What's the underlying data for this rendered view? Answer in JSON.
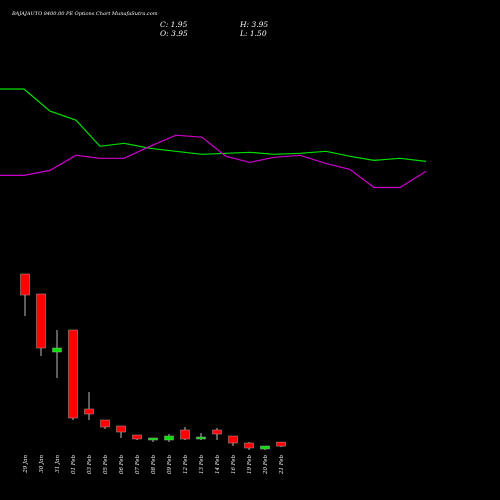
{
  "header": {
    "title": "BAJAJAUTO 8400.00 PE Options  Chart MunafaSutra.com",
    "close_label": "C:",
    "close_value": "1.95",
    "open_label": "O:",
    "open_value": "3.95",
    "high_label": "H:",
    "high_value": "3.95",
    "low_label": "L:",
    "low_value": "1.50"
  },
  "colors": {
    "background": "#000000",
    "up": "#00e000",
    "down": "#ff0000",
    "ma_fast": "#00dd00",
    "ma_slow": "#cc00cc"
  },
  "chart_data": {
    "type": "candlestick",
    "x": [
      "29 Jan",
      "30 Jan",
      "31 Jan",
      "01 Feb",
      "03 Feb",
      "05 Feb",
      "06 Feb",
      "07 Feb",
      "08 Feb",
      "09 Feb",
      "12 Feb",
      "13 Feb",
      "14 Feb",
      "16 Feb",
      "19 Feb",
      "20 Feb",
      "21 Feb"
    ],
    "candles": [
      {
        "open": 88.0,
        "high": 88.0,
        "low": 67.0,
        "close": 77.5
      },
      {
        "open": 78.0,
        "high": 78.0,
        "low": 47.0,
        "close": 51.0
      },
      {
        "open": 49.0,
        "high": 60.0,
        "low": 36.0,
        "close": 51.0
      },
      {
        "open": 60.0,
        "high": 60.0,
        "low": 15.0,
        "close": 16.0
      },
      {
        "open": 20.5,
        "high": 29.0,
        "low": 15.0,
        "close": 18.0
      },
      {
        "open": 15.0,
        "high": 15.0,
        "low": 10.5,
        "close": 11.5
      },
      {
        "open": 12.0,
        "high": 12.0,
        "low": 6.0,
        "close": 9.0
      },
      {
        "open": 7.5,
        "high": 7.5,
        "low": 5.0,
        "close": 5.5
      },
      {
        "open": 5.0,
        "high": 6.0,
        "low": 4.0,
        "close": 6.0
      },
      {
        "open": 5.0,
        "high": 8.0,
        "low": 4.0,
        "close": 7.0
      },
      {
        "open": 10.0,
        "high": 11.5,
        "low": 5.0,
        "close": 5.5
      },
      {
        "open": 5.5,
        "high": 8.5,
        "low": 5.0,
        "close": 6.5
      },
      {
        "open": 10.0,
        "high": 11.0,
        "low": 5.0,
        "close": 8.0
      },
      {
        "open": 7.0,
        "high": 7.0,
        "low": 2.0,
        "close": 3.5
      },
      {
        "open": 3.5,
        "high": 4.0,
        "low": 0.0,
        "close": 1.0
      },
      {
        "open": 0.5,
        "high": 2.0,
        "low": 0.0,
        "close": 2.0
      },
      {
        "open": 3.95,
        "high": 3.95,
        "low": 1.5,
        "close": 1.95
      }
    ],
    "ma_fast": [
      100.0,
      100.0,
      89.0,
      84.5,
      71.5,
      73.0,
      70.5,
      69.0,
      67.5,
      68.0,
      68.5,
      67.5,
      68.0,
      69.0,
      66.5,
      64.5,
      65.5,
      64.0
    ],
    "ma_slow": [
      57.0,
      57.0,
      59.5,
      67.0,
      65.5,
      65.5,
      71.5,
      77.0,
      76.0,
      66.5,
      63.5,
      66.0,
      67.0,
      63.0,
      60.0,
      51.0,
      51.0,
      59.0
    ],
    "ma_x": [
      0,
      24,
      50,
      76,
      100,
      124,
      150,
      176,
      202,
      226,
      250,
      274,
      300,
      326,
      350,
      374,
      400,
      426
    ],
    "ylim": [
      0,
      100
    ]
  }
}
